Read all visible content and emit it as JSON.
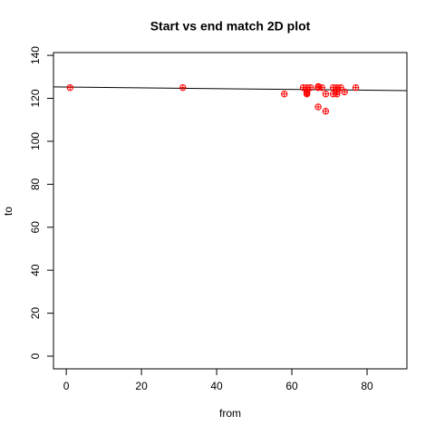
{
  "chart_data": {
    "type": "scatter",
    "title": "Start vs end match 2D plot",
    "x_label": "from",
    "y_label": "to",
    "xlim": [
      -3.4,
      90.6
    ],
    "ylim": [
      -5.9,
      141.3
    ],
    "xticks": [
      0,
      20,
      40,
      60,
      80
    ],
    "yticks": [
      0,
      20,
      40,
      60,
      80,
      100,
      120,
      140
    ],
    "series": [
      {
        "color": "#ff0000",
        "x": [
          1,
          31,
          58,
          63,
          64,
          64,
          64,
          64,
          65,
          67,
          67,
          67,
          68,
          69,
          69,
          71,
          71,
          72,
          72,
          72,
          72,
          73,
          74,
          77
        ],
        "values": [
          125,
          125,
          122,
          125,
          122,
          123,
          125,
          122.5,
          125,
          125,
          125.5,
          116,
          125,
          122,
          114,
          125,
          122,
          125,
          124,
          123,
          122,
          125,
          123,
          125
        ]
      }
    ],
    "fit_line": {
      "color": "#000000",
      "x": [
        -3.4,
        90.6
      ],
      "values": [
        125.3,
        123.6
      ]
    }
  }
}
